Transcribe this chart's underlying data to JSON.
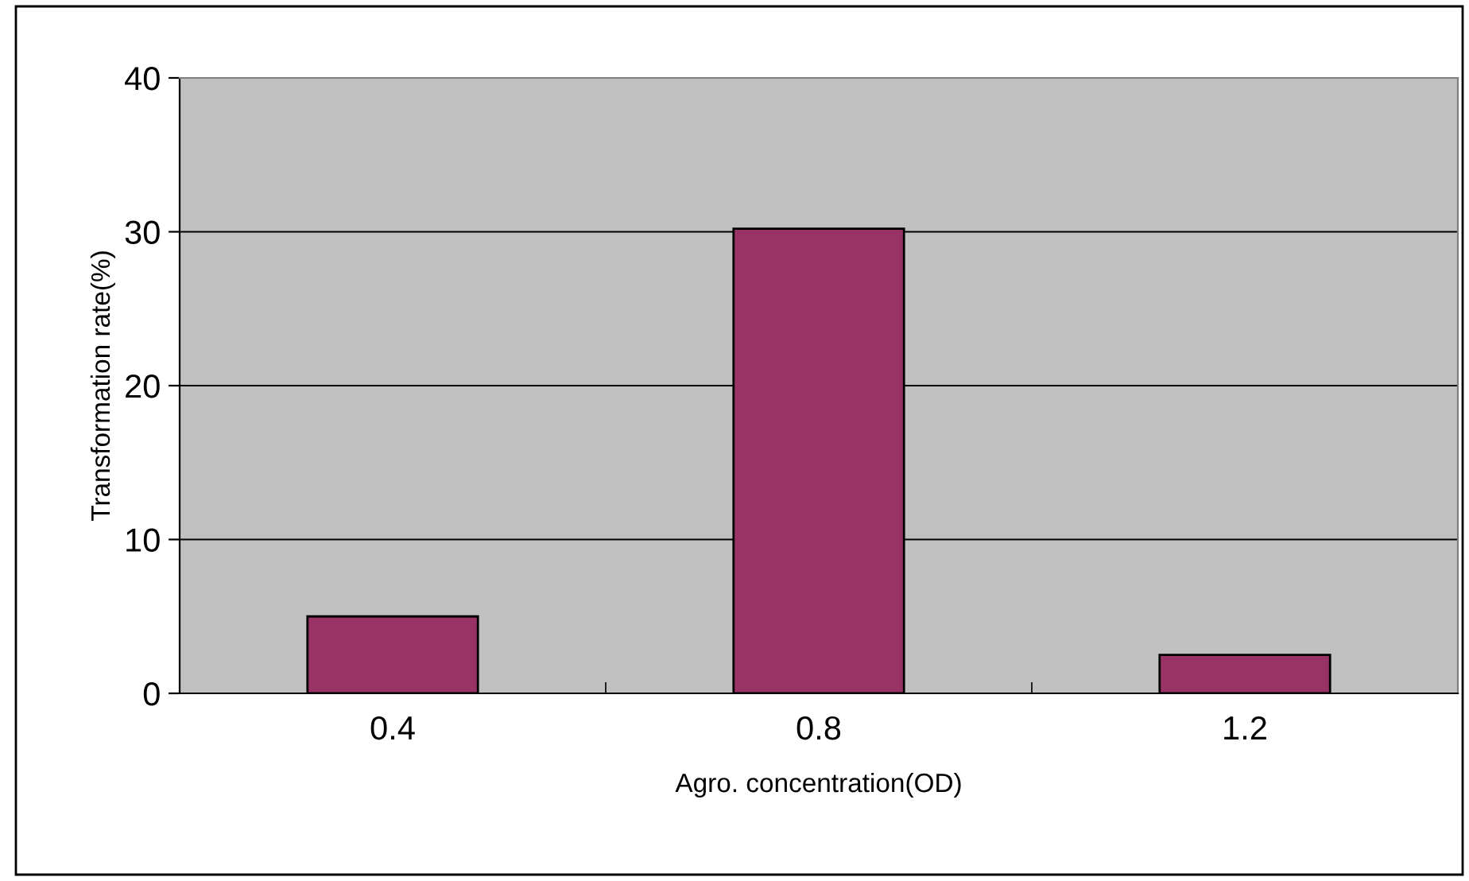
{
  "chart_data": {
    "type": "bar",
    "xlabel": "Agro. concentration(OD)",
    "ylabel": "Transformation rate(%)",
    "categories": [
      "0.4",
      "0.8",
      "1.2"
    ],
    "values": [
      5,
      30.2,
      2.5
    ],
    "color": "#993366",
    "ylim": [
      0,
      40
    ],
    "yticks": [
      0,
      10,
      20,
      30,
      40
    ],
    "grid": "y"
  }
}
